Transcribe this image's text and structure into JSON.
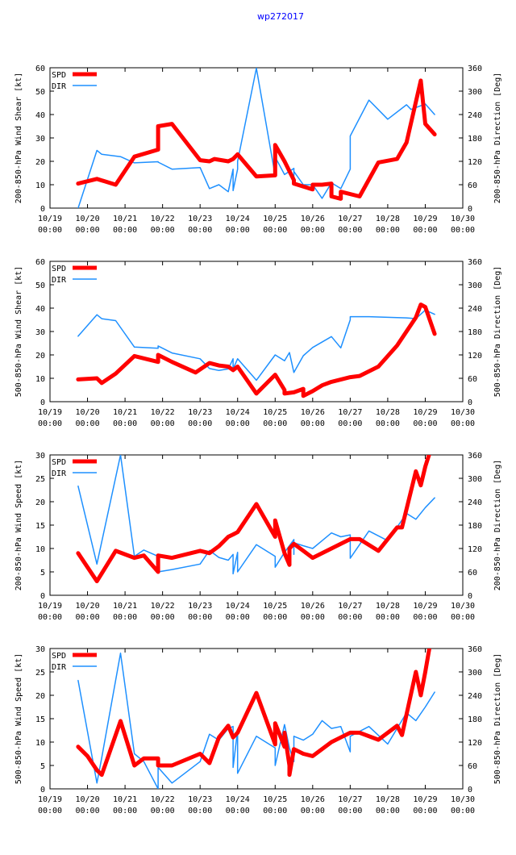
{
  "page": {
    "title": "wp272017",
    "title_color": "#0000ff"
  },
  "colors": {
    "spd": "#ff0000",
    "dir": "#1e90ff",
    "frame": "#000000",
    "grid": "#999999"
  },
  "legend": {
    "spd_label": "SPD",
    "dir_label": "DIR"
  },
  "x_axis": {
    "range": [
      0,
      11
    ],
    "tick_values": [
      0,
      1,
      2,
      3,
      4,
      5,
      6,
      7,
      8,
      9,
      10,
      11
    ],
    "tick_dates": [
      "10/19",
      "10/20",
      "10/21",
      "10/22",
      "10/23",
      "10/24",
      "10/25",
      "10/26",
      "10/27",
      "10/28",
      "10/29",
      "10/30"
    ],
    "tick_times": [
      "00:00",
      "00:00",
      "00:00",
      "00:00",
      "00:00",
      "00:00",
      "00:00",
      "00:00",
      "00:00",
      "00:00",
      "00:00",
      "00:00"
    ]
  },
  "chart_data": [
    {
      "type": "line",
      "title": "",
      "ylabel": "200-850-hPa Wind Shear [kt]",
      "y2label": "200-850-hPa Direction [Deg]",
      "ylim": [
        0,
        60
      ],
      "y2lim": [
        0,
        360
      ],
      "yticks": [
        "0",
        "10",
        "20",
        "30",
        "40",
        "50",
        "60"
      ],
      "y2ticks": [
        "0",
        "60",
        "120",
        "180",
        "240",
        "300",
        "360"
      ],
      "series": [
        {
          "name": "SPD",
          "axis": "left",
          "x": [
            0.75,
            1.25,
            1.75,
            2.25,
            2.88,
            2.88,
            3.25,
            4.0,
            4.25,
            4.38,
            4.75,
            4.88,
            5.0,
            5.5,
            6.0,
            6.0,
            6.25,
            6.5,
            6.5,
            7.0,
            7.0,
            7.25,
            7.25,
            7.5,
            7.5,
            7.75,
            7.75,
            8.25,
            8.75,
            9.25,
            9.5,
            9.88,
            10.0,
            10.25
          ],
          "y": [
            10.5,
            12.5,
            10.0,
            22.0,
            25.0,
            35.0,
            36.0,
            20.5,
            20.0,
            21.0,
            20.0,
            21.0,
            23.0,
            13.5,
            14.0,
            27.0,
            20.0,
            12.0,
            10.5,
            8.0,
            10.0,
            10.0,
            10.0,
            10.5,
            5.0,
            4.0,
            7.0,
            5.0,
            19.5,
            21.0,
            28.0,
            54.5,
            36.0,
            31.5
          ]
        },
        {
          "name": "DIR",
          "axis": "right",
          "x": [
            0.75,
            1.25,
            1.38,
            1.88,
            2.25,
            2.88,
            2.88,
            3.25,
            4.0,
            4.25,
            4.5,
            4.75,
            4.88,
            4.88,
            5.0,
            5.0,
            5.5,
            6.0,
            6.0,
            6.25,
            6.5,
            6.5,
            6.5,
            6.75,
            7.0,
            7.25,
            7.5,
            7.75,
            8.0,
            8.0,
            8.5,
            9.0,
            9.5,
            9.62,
            10.0,
            10.25
          ],
          "y": [
            0,
            148,
            138,
            132,
            116,
            119,
            118,
            100,
            104,
            50,
            60,
            42,
            100,
            45,
            100,
            120,
            359,
            83,
            131,
            86,
            102,
            62,
            94,
            60,
            60,
            25,
            65,
            50,
            100,
            185,
            277,
            228,
            265,
            253,
            267,
            240
          ]
        }
      ]
    },
    {
      "type": "line",
      "title": "",
      "ylabel": "500-850-hPa Wind Shear [kt]",
      "y2label": "500-850-hPa Direction [Deg]",
      "ylim": [
        0,
        60
      ],
      "y2lim": [
        0,
        360
      ],
      "yticks": [
        "0",
        "10",
        "20",
        "30",
        "40",
        "50",
        "60"
      ],
      "y2ticks": [
        "0",
        "60",
        "120",
        "180",
        "240",
        "300",
        "360"
      ],
      "series": [
        {
          "name": "SPD",
          "axis": "left",
          "x": [
            0.75,
            1.25,
            1.38,
            1.75,
            2.25,
            2.88,
            2.88,
            3.25,
            3.88,
            4.25,
            4.5,
            4.75,
            4.88,
            5.0,
            5.5,
            6.0,
            6.25,
            6.25,
            6.5,
            6.75,
            6.75,
            7.0,
            7.25,
            7.5,
            8.0,
            8.25,
            8.75,
            9.25,
            9.75,
            9.88,
            10.0,
            10.25
          ],
          "y": [
            9.5,
            10.0,
            8.0,
            12.0,
            19.5,
            17.0,
            20.0,
            17.0,
            12.5,
            16.5,
            15.5,
            15.0,
            13.5,
            15.0,
            3.5,
            11.5,
            5.0,
            3.5,
            4.0,
            5.5,
            2.5,
            4.5,
            7.0,
            8.5,
            10.5,
            11.0,
            15.0,
            24.0,
            36.0,
            41.5,
            40.5,
            29.0
          ]
        },
        {
          "name": "DIR",
          "axis": "right",
          "x": [
            0.75,
            1.25,
            1.38,
            1.75,
            2.25,
            2.88,
            2.88,
            3.25,
            4.0,
            4.25,
            4.5,
            4.75,
            4.88,
            4.88,
            5.0,
            5.5,
            6.0,
            6.25,
            6.38,
            6.5,
            6.5,
            6.75,
            7.0,
            7.5,
            7.75,
            8.0,
            8.0,
            8.5,
            9.5,
            9.75,
            10.0,
            10.25
          ],
          "y": [
            168,
            223,
            213,
            208,
            140,
            137,
            143,
            125,
            110,
            85,
            80,
            84,
            110,
            84,
            110,
            55,
            120,
            105,
            126,
            75,
            75,
            118,
            139,
            167,
            138,
            210,
            218,
            218,
            215,
            213,
            235,
            224
          ]
        }
      ]
    },
    {
      "type": "line",
      "title": "",
      "ylabel": "200-850-hPa Wind Speed [kt]",
      "y2label": "200-850-hPa Direction [Deg]",
      "ylim": [
        0,
        30
      ],
      "y2lim": [
        0,
        360
      ],
      "yticks": [
        "0",
        "5",
        "10",
        "15",
        "20",
        "25",
        "30"
      ],
      "y2ticks": [
        "0",
        "60",
        "120",
        "180",
        "240",
        "300",
        "360"
      ],
      "series": [
        {
          "name": "SPD",
          "axis": "left",
          "x": [
            0.75,
            1.25,
            1.75,
            2.25,
            2.5,
            2.88,
            2.88,
            3.25,
            4.0,
            4.25,
            4.5,
            4.75,
            4.88,
            5.0,
            5.5,
            6.0,
            6.0,
            6.25,
            6.38,
            6.38,
            6.5,
            6.75,
            7.0,
            7.5,
            8.0,
            8.25,
            8.75,
            9.25,
            9.38,
            9.75,
            9.88,
            10.0,
            10.12
          ],
          "y": [
            9.0,
            3.0,
            9.5,
            8.0,
            8.5,
            5.0,
            8.5,
            8.0,
            9.5,
            9.0,
            10.5,
            12.5,
            13.0,
            13.5,
            19.5,
            12.5,
            16.0,
            9.0,
            6.5,
            10.0,
            11.0,
            9.5,
            8.0,
            10.0,
            12.0,
            12.0,
            9.5,
            14.5,
            14.5,
            26.5,
            23.5,
            27.5,
            30.5
          ]
        },
        {
          "name": "DIR",
          "axis": "right",
          "x": [
            0.75,
            1.25,
            1.88,
            2.25,
            2.5,
            2.88,
            2.88,
            3.25,
            4.0,
            4.25,
            4.5,
            4.75,
            4.88,
            4.88,
            5.0,
            5.0,
            5.5,
            6.0,
            6.0,
            6.25,
            6.5,
            6.5,
            6.5,
            6.75,
            7.0,
            7.25,
            7.5,
            7.75,
            8.0,
            8.0,
            8.5,
            9.0,
            9.5,
            9.75,
            10.0,
            10.25
          ],
          "y": [
            280,
            80,
            360,
            100,
            116,
            100,
            60,
            66,
            80,
            115,
            97,
            90,
            105,
            55,
            110,
            60,
            130,
            100,
            72,
            110,
            143,
            105,
            135,
            127,
            120,
            140,
            160,
            150,
            155,
            95,
            165,
            140,
            210,
            195,
            225,
            250
          ]
        }
      ]
    },
    {
      "type": "line",
      "title": "",
      "ylabel": "500-850-hPa Wind Speed [kt]",
      "y2label": "500-850-hPa Direction [Deg]",
      "ylim": [
        0,
        30
      ],
      "y2lim": [
        0,
        360
      ],
      "yticks": [
        "0",
        "5",
        "10",
        "15",
        "20",
        "25",
        "30"
      ],
      "y2ticks": [
        "0",
        "60",
        "120",
        "180",
        "240",
        "300",
        "360"
      ],
      "series": [
        {
          "name": "SPD",
          "axis": "left",
          "x": [
            0.75,
            1.0,
            1.25,
            1.38,
            1.88,
            2.25,
            2.5,
            2.88,
            2.88,
            3.25,
            4.0,
            4.25,
            4.5,
            4.75,
            4.88,
            5.0,
            5.5,
            6.0,
            6.0,
            6.25,
            6.25,
            6.38,
            6.38,
            6.5,
            6.75,
            7.0,
            7.5,
            7.75,
            8.0,
            8.25,
            8.75,
            9.25,
            9.38,
            9.75,
            9.88,
            10.0,
            10.12
          ],
          "y": [
            9.0,
            7.0,
            4.0,
            3.0,
            14.5,
            5.0,
            6.5,
            6.5,
            5.0,
            5.0,
            7.5,
            5.5,
            11.0,
            13.5,
            11.0,
            12.0,
            20.5,
            9.5,
            14.0,
            9.0,
            12.0,
            5.0,
            3.0,
            8.5,
            7.5,
            7.0,
            10.0,
            11.0,
            12.0,
            12.0,
            10.5,
            13.5,
            11.5,
            25.0,
            20.0,
            25.0,
            30.5
          ]
        },
        {
          "name": "DIR",
          "axis": "right",
          "x": [
            0.75,
            1.25,
            1.38,
            1.88,
            2.25,
            2.5,
            2.88,
            2.88,
            3.25,
            4.0,
            4.25,
            4.5,
            4.75,
            4.88,
            4.88,
            5.0,
            5.0,
            5.5,
            6.0,
            6.0,
            6.25,
            6.38,
            6.5,
            6.5,
            6.75,
            7.0,
            7.25,
            7.5,
            7.75,
            8.0,
            8.0,
            8.5,
            9.0,
            9.5,
            9.75,
            10.0,
            10.25
          ],
          "y": [
            278,
            15,
            80,
            348,
            90,
            70,
            0,
            55,
            15,
            70,
            140,
            125,
            155,
            160,
            55,
            150,
            40,
            135,
            105,
            60,
            165,
            105,
            70,
            135,
            125,
            140,
            175,
            155,
            160,
            95,
            135,
            160,
            115,
            195,
            175,
            210,
            248
          ]
        }
      ]
    }
  ]
}
